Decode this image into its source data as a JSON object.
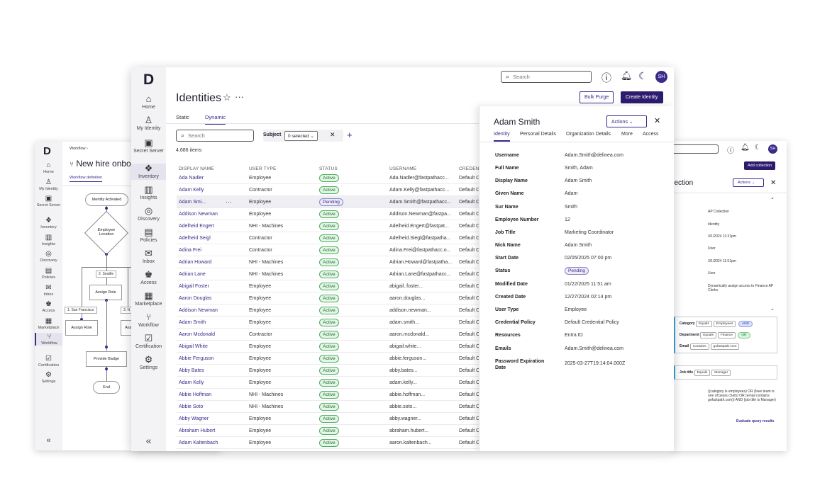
{
  "workflow_window": {
    "nav": [
      {
        "label": "Home",
        "icon": "home-icon"
      },
      {
        "label": "My Identity",
        "icon": "user-icon"
      },
      {
        "label": "Secret Server",
        "icon": "vault-icon"
      },
      {
        "label": "Inventory",
        "icon": "inventory-icon"
      },
      {
        "label": "Insights",
        "icon": "chart-icon"
      },
      {
        "label": "Discovery",
        "icon": "compass-icon"
      },
      {
        "label": "Policies",
        "icon": "policies-icon"
      },
      {
        "label": "Inbox",
        "icon": "inbox-icon"
      },
      {
        "label": "Access",
        "icon": "access-icon"
      },
      {
        "label": "Marketplace",
        "icon": "store-icon"
      },
      {
        "label": "Workflow",
        "icon": "workflow-icon"
      },
      {
        "label": "Certification",
        "icon": "certification-icon"
      },
      {
        "label": "Settings",
        "icon": "gear-icon"
      }
    ],
    "logo": "D",
    "breadcrumb": "Workflow",
    "title": "New hire onbo",
    "tab": "Workflow definition",
    "nodes": {
      "start": "Identity Activated",
      "decision": "Employee Location",
      "assign1": "Assign Role",
      "assign2": "Assign Role",
      "assign3": "Assi",
      "badge": "Provide Badge",
      "end": "End"
    },
    "tags": {
      "seattle": "2. Seattle",
      "sanfran": "1. San Francisco",
      "third": "3. N"
    },
    "collapse": "«"
  },
  "collection_window": {
    "add_button": "Add collection",
    "title": "llection",
    "actions": "Actions",
    "fields": [
      "AP Collection",
      "Identity",
      "3/1/2024 11:31pm",
      "User",
      "3/1/2024 11:51pm",
      "User",
      "Dynamically assign access to Finance AP Clerks"
    ],
    "rules": [
      {
        "field": "Category",
        "op": "Equals",
        "value": "Employees",
        "join": "AND"
      },
      {
        "field": "Department",
        "op": "Equals",
        "value": "Finance",
        "join": "OR"
      },
      {
        "field": "Email",
        "op": "Contains",
        "value": "gofastpath.com",
        "join": ""
      }
    ],
    "rule2": {
      "field": "Job title",
      "op": "Equals",
      "value": "Manager"
    },
    "query": "((category is employees) OR (fave team is one of bears chefs) OR (email contains gofastpath.com)) AND (job title is Manager)",
    "evaluate": "Evaluate query results",
    "avatar": "SH"
  },
  "main": {
    "logo": "D",
    "nav": [
      {
        "label": "Home",
        "icon": "home-icon"
      },
      {
        "label": "My Identity",
        "icon": "user-icon"
      },
      {
        "label": "Secret Server",
        "icon": "vault-icon"
      },
      {
        "label": "Inventory",
        "icon": "inventory-icon"
      },
      {
        "label": "Insights",
        "icon": "chart-icon"
      },
      {
        "label": "Discovery",
        "icon": "compass-icon"
      },
      {
        "label": "Policies",
        "icon": "policies-icon"
      },
      {
        "label": "Inbox",
        "icon": "inbox-icon"
      },
      {
        "label": "Access",
        "icon": "access-icon"
      },
      {
        "label": "Marketplace",
        "icon": "store-icon"
      },
      {
        "label": "Workflow",
        "icon": "workflow-icon"
      },
      {
        "label": "Certification",
        "icon": "certification-icon"
      },
      {
        "label": "Settings",
        "icon": "gear-icon"
      }
    ],
    "collapse": "«",
    "top_search_placeholder": "Search",
    "avatar": "SH",
    "page_title": "Identities",
    "bulk_purge": "Bulk Purge",
    "create_identity": "Create Identity",
    "tabs": [
      "Static",
      "Dynamic"
    ],
    "filter_search_placeholder": "Search",
    "subject_label": "Subject",
    "subject_value": "0 selected",
    "count": "4,686 items",
    "columns": [
      "DISPLAY NAME",
      "USER TYPE",
      "STATUS",
      "USERNAME",
      "CREDENT"
    ],
    "rows": [
      [
        "Ada Nadler",
        "Employee",
        "Active",
        "Ada.Nadler@fastpathacc...",
        "Default C"
      ],
      [
        "Adam Kelly",
        "Contractor",
        "Active",
        "Adam.Kelly@fastpathacc...",
        "Default C"
      ],
      [
        "Adam Smi...",
        "Employee",
        "Pending",
        "Adam.Smith@fastpathacc...",
        "Default C"
      ],
      [
        "Addison Newman",
        "Employee",
        "Active",
        "Addison.Newman@fastpa...",
        "Default C"
      ],
      [
        "Adelheid Engert",
        "NHI - Machines",
        "Active",
        "Adelheid.Engert@fastpat...",
        "Default C"
      ],
      [
        "Adelheid Seigl",
        "Contractor",
        "Active",
        "Adelheid.Siegl@fastpatha...",
        "Default C"
      ],
      [
        "Adina Frei",
        "Contractor",
        "Active",
        "Adina.Frei@fastpathacc.o...",
        "Default C"
      ],
      [
        "Adrian Howard",
        "NHI - Machines",
        "Active",
        "Adrian.Howard@fastpatha...",
        "Default C"
      ],
      [
        "Adrian Lane",
        "NHI - Machines",
        "Active",
        "Adrian.Lane@fastpathacc...",
        "Default C"
      ],
      [
        "Abigail Foster",
        "Employee",
        "Active",
        "abigail..foster...",
        "Default C"
      ],
      [
        "Aaron Douglas",
        "Employee",
        "Active",
        "aaron.douglas...",
        "Default C"
      ],
      [
        "Addison Newman",
        "Employee",
        "Active",
        "addison.newman...",
        "Default C"
      ],
      [
        "Adam Smith",
        "Employee",
        "Active",
        "adam.smith...",
        "Default C"
      ],
      [
        "Aaron Mcdonald",
        "Contractor",
        "Active",
        "aaron.mcdonald...",
        "Default C"
      ],
      [
        "Abigail White",
        "Employee",
        "Active",
        "abigail.white...",
        "Default C"
      ],
      [
        "Abbie Ferguson",
        "Employee",
        "Active",
        "abbie.ferguson...",
        "Default C"
      ],
      [
        "Abby Bates",
        "Employee",
        "Active",
        "abby.bates...",
        "Default C"
      ],
      [
        "Adam Kelly",
        "Employee",
        "Active",
        "adam.kelly...",
        "Default C"
      ],
      [
        "Abbie Hoffman",
        "NHI - Machines",
        "Active",
        "abbie.hoffman...",
        "Default C"
      ],
      [
        "Abbie Soto",
        "NHI - Machines",
        "Active",
        "abbie.soto...",
        "Default C"
      ],
      [
        "Abby Wagner",
        "Employee",
        "Active",
        "abby.wagner...",
        "Default C"
      ],
      [
        "Abraham Hubert",
        "Employee",
        "Active",
        "abraham.hubert...",
        "Default C"
      ],
      [
        "Adam Kaltenbach",
        "Employee",
        "Active",
        "aaron.kaltenbach...",
        "Default C"
      ]
    ],
    "detail": {
      "name": "Adam Smith",
      "actions": "Actions",
      "tabs": [
        "Identity",
        "Personal Details",
        "Organization Details",
        "More",
        "Access"
      ],
      "fields": [
        [
          "Username",
          "Adam.Smith@delinea.com"
        ],
        [
          "Full Name",
          "Smith, Adam"
        ],
        [
          "Display Name",
          "Adam Smith"
        ],
        [
          "Given Name",
          "Adam"
        ],
        [
          "Sur Name",
          "Smith"
        ],
        [
          "Employee Number",
          "12"
        ],
        [
          "Job Title",
          "Marketing Coordinator"
        ],
        [
          "Nick Name",
          "Adam Smith"
        ],
        [
          "Start Date",
          "02/05/2025 07:00 pm"
        ],
        [
          "Status",
          "Pending"
        ],
        [
          "Modified Date",
          "01/22/2025 11:51 am"
        ],
        [
          "Created Date",
          "12/27/2024 02:14 pm"
        ],
        [
          "User Type",
          "Employee"
        ],
        [
          "Credential Policy",
          "Default Credential Policy"
        ],
        [
          "Resources",
          "Entra ID"
        ],
        [
          "Emails",
          "Adam.Smith@delinea.com"
        ],
        [
          "Password Expiration Date",
          "2025-03-27T19:14:04.000Z"
        ]
      ]
    }
  }
}
